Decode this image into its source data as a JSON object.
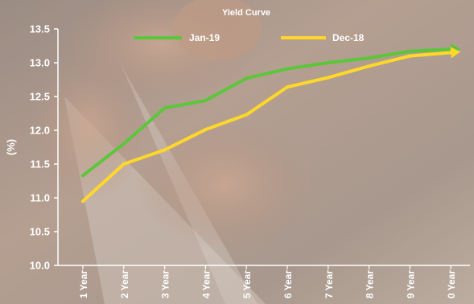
{
  "chart_data": {
    "type": "line",
    "title": "Yield Curve",
    "ylabel": "(%)",
    "xlabel": "",
    "ylim": [
      10.0,
      13.5
    ],
    "yticks": [
      "13.5",
      "13.0",
      "12.5",
      "12.0",
      "11.5",
      "11.0",
      "10.5",
      "10.0"
    ],
    "categories": [
      "1 Year",
      "2 Year",
      "3 Year",
      "4 Year",
      "5 Year",
      "6 Year",
      "7 Year",
      "8 Year",
      "9 Year",
      "0 Year"
    ],
    "grid": false,
    "legend_position": "top",
    "series": [
      {
        "name": "Jan-19",
        "color": "#5cc63b",
        "values": [
          11.33,
          11.8,
          12.33,
          12.44,
          12.77,
          12.91,
          13.0,
          13.07,
          13.17,
          13.2
        ]
      },
      {
        "name": "Dec-18",
        "color": "#ffd829",
        "values": [
          10.95,
          11.5,
          11.71,
          12.01,
          12.23,
          12.64,
          12.78,
          12.95,
          13.1,
          13.15
        ]
      }
    ]
  }
}
